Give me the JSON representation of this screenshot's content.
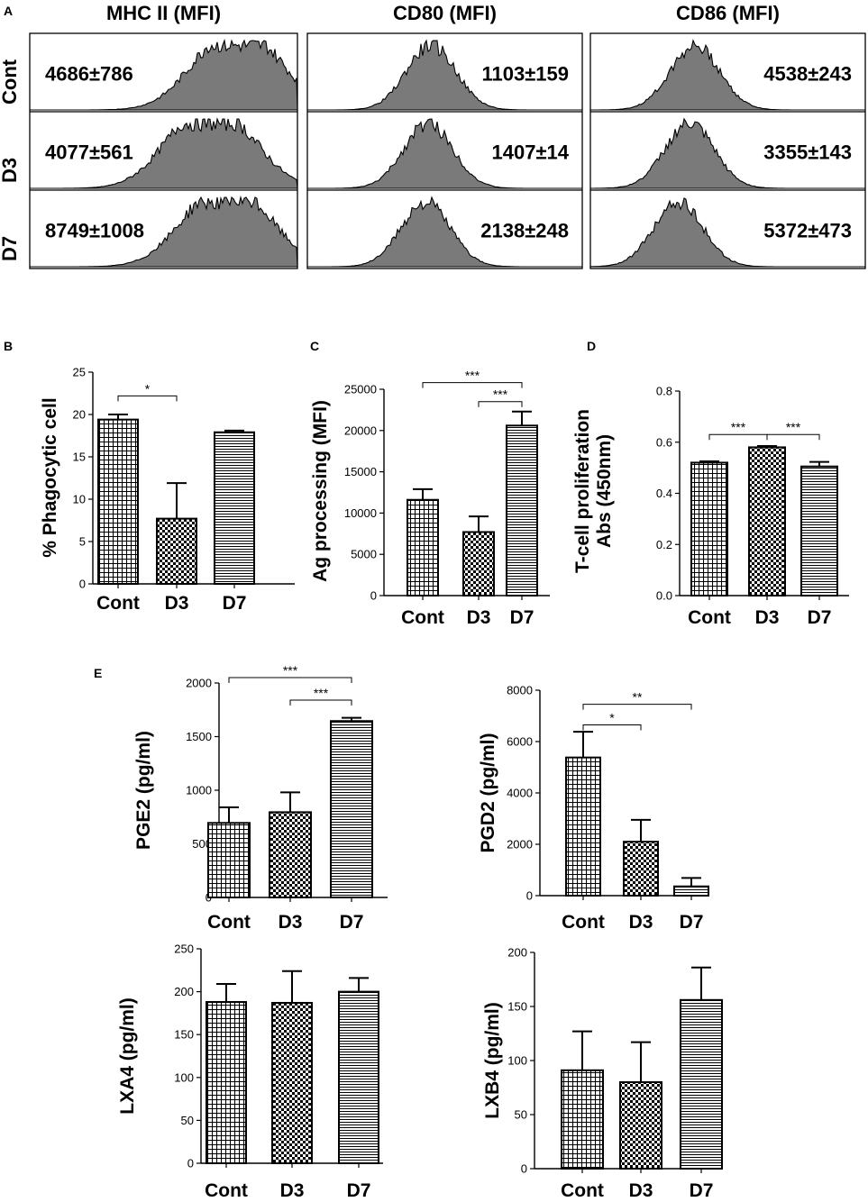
{
  "colors": {
    "ink": "#000000",
    "hist_fill": "#7a7a7a",
    "bar_border": "#000000",
    "background": "#ffffff"
  },
  "panel_letters": {
    "a": "A",
    "b": "B",
    "c": "C",
    "d": "D",
    "e": "E"
  },
  "chart_data": [
    {
      "id": "A",
      "type": "histogram-grid",
      "markers": [
        "MHC II (MFI)",
        "CD80 (MFI)",
        "CD86 (MFI)"
      ],
      "groups": [
        "Cont",
        "D3",
        "D7"
      ],
      "values": [
        [
          "4686±786",
          "1103±159",
          "4538±243"
        ],
        [
          "4077±561",
          "1407±14",
          "3355±143"
        ],
        [
          "8749±1008",
          "2138±248",
          "5372±473"
        ]
      ],
      "peak_position_fraction": [
        [
          0.72,
          0.45,
          0.38
        ],
        [
          0.62,
          0.44,
          0.36
        ],
        [
          0.68,
          0.43,
          0.32
        ]
      ]
    },
    {
      "id": "B",
      "type": "bar",
      "categories": [
        "Cont",
        "D3",
        "D7"
      ],
      "values": [
        19.4,
        7.7,
        17.9
      ],
      "errors": [
        0.6,
        4.2,
        0.2
      ],
      "patterns": [
        "grid",
        "checker",
        "hlines"
      ],
      "ylabel": "% Phagocytic cell",
      "ylim": [
        0,
        25
      ],
      "yticks": [
        "0",
        "5",
        "10",
        "15",
        "20",
        "25"
      ],
      "significance": [
        {
          "from": 0,
          "to": 1,
          "label": "*",
          "y": 22.2
        }
      ]
    },
    {
      "id": "C",
      "type": "bar",
      "categories": [
        "Cont",
        "D3",
        "D7"
      ],
      "values": [
        11600,
        7700,
        20600
      ],
      "errors": [
        1300,
        1900,
        1700
      ],
      "patterns": [
        "grid",
        "checker",
        "hlines"
      ],
      "ylabel": "Ag processing (MFI)",
      "ylim": [
        0,
        25000
      ],
      "yticks": [
        "0",
        "5000",
        "10000",
        "15000",
        "20000",
        "25000"
      ],
      "significance": [
        {
          "from": 0,
          "to": 2,
          "label": "***",
          "y": 25800
        },
        {
          "from": 1,
          "to": 2,
          "label": "***",
          "y": 23500
        }
      ]
    },
    {
      "id": "D",
      "type": "bar",
      "categories": [
        "Cont",
        "D3",
        "D7"
      ],
      "values": [
        0.52,
        0.58,
        0.505
      ],
      "errors": [
        0.005,
        0.005,
        0.018
      ],
      "patterns": [
        "grid",
        "checker",
        "hlines"
      ],
      "ylabel": "T-cell proliferation\nAbs (450nm)",
      "ylim": [
        0,
        0.8
      ],
      "yticks": [
        "0.0",
        "0.2",
        "0.4",
        "0.6",
        "0.8"
      ],
      "significance": [
        {
          "from": 0,
          "to": 1,
          "label": "***",
          "y": 0.63
        },
        {
          "from": 1,
          "to": 2,
          "label": "***",
          "y": 0.63
        }
      ]
    },
    {
      "id": "E1",
      "type": "bar",
      "categories": [
        "Cont",
        "D3",
        "D7"
      ],
      "values": [
        695,
        795,
        1645
      ],
      "errors": [
        145,
        185,
        30
      ],
      "patterns": [
        "grid",
        "checker",
        "hlines"
      ],
      "ylabel": "PGE2 (pg/ml)",
      "ylim": [
        0,
        2000
      ],
      "yticks": [
        "0",
        "500",
        "1000",
        "1500",
        "2000"
      ],
      "significance": [
        {
          "from": 0,
          "to": 2,
          "label": "***",
          "y": 2050
        },
        {
          "from": 1,
          "to": 2,
          "label": "***",
          "y": 1840
        }
      ]
    },
    {
      "id": "E2",
      "type": "bar",
      "categories": [
        "Cont",
        "D3",
        "D7"
      ],
      "values": [
        5380,
        2100,
        360
      ],
      "errors": [
        1000,
        850,
        330
      ],
      "patterns": [
        "grid",
        "checker",
        "hlines"
      ],
      "ylabel": "PGD2 (pg/ml)",
      "ylim": [
        0,
        8000
      ],
      "yticks": [
        "0",
        "2000",
        "4000",
        "6000",
        "8000"
      ],
      "significance": [
        {
          "from": 0,
          "to": 2,
          "label": "**",
          "y": 7450
        },
        {
          "from": 0,
          "to": 1,
          "label": "*",
          "y": 6650
        }
      ]
    },
    {
      "id": "E3",
      "type": "bar",
      "categories": [
        "Cont",
        "D3",
        "D7"
      ],
      "values": [
        188,
        187,
        200
      ],
      "errors": [
        21,
        37,
        16
      ],
      "patterns": [
        "grid",
        "checker",
        "hlines"
      ],
      "ylabel": "LXA4 (pg/ml)",
      "ylim": [
        0,
        250
      ],
      "yticks": [
        "0",
        "50",
        "100",
        "150",
        "200",
        "250"
      ],
      "significance": []
    },
    {
      "id": "E4",
      "type": "bar",
      "categories": [
        "Cont",
        "D3",
        "D7"
      ],
      "values": [
        91,
        80,
        156
      ],
      "errors": [
        36,
        37,
        30
      ],
      "patterns": [
        "grid",
        "checker",
        "hlines"
      ],
      "ylabel": "LXB4 (pg/ml)",
      "ylim": [
        0,
        200
      ],
      "yticks": [
        "0",
        "50",
        "100",
        "150",
        "200"
      ],
      "significance": []
    }
  ]
}
